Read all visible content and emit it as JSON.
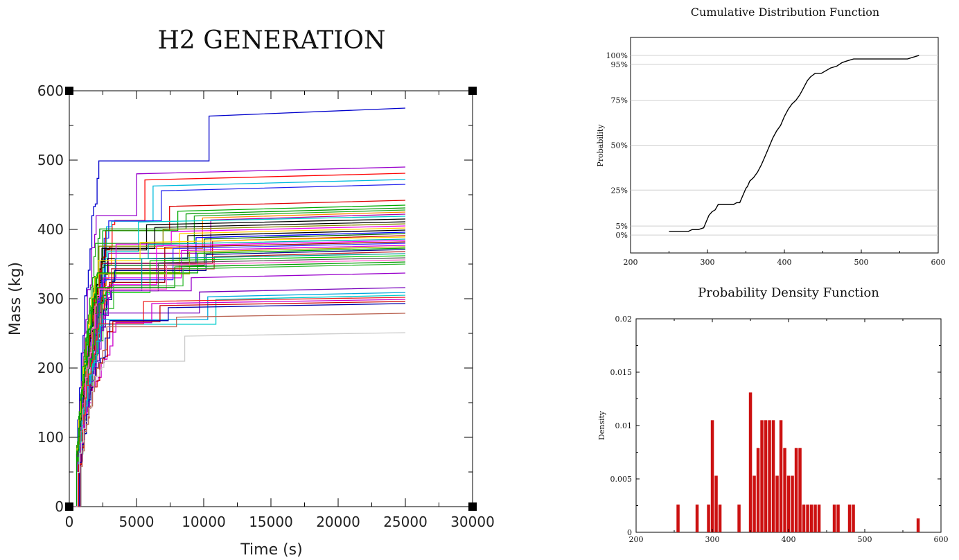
{
  "chart_data": [
    {
      "type": "line",
      "title": "H2 GENERATION",
      "xlabel": "Time (s)",
      "ylabel": "Mass (kg)",
      "xlim": [
        0,
        30000
      ],
      "ylim": [
        0,
        600
      ],
      "xticks": [
        "0",
        "5000",
        "10000",
        "15000",
        "20000",
        "25000",
        "30000"
      ],
      "yticks": [
        "0",
        "100",
        "200",
        "300",
        "400",
        "500",
        "600"
      ],
      "grid": false,
      "legend": "none",
      "series_final_values": [
        575,
        490,
        481,
        472,
        465,
        442,
        435,
        431,
        428,
        425,
        422,
        419,
        415,
        411,
        408,
        405,
        402,
        399,
        396,
        394,
        391,
        389,
        386,
        384,
        382,
        380,
        377,
        375,
        373,
        371,
        368,
        365,
        362,
        359,
        356,
        353,
        350,
        337,
        316,
        309,
        305,
        302,
        299,
        296,
        293,
        279,
        251
      ],
      "series_colors": [
        "#0000cc",
        "#9900cc",
        "#ff0000",
        "#00bbdd",
        "#2222ee",
        "#dd0000",
        "#00aa00",
        "#009900",
        "#22aa22",
        "#ff8800",
        "#aa00aa",
        "#00cccc",
        "#000000",
        "#000000",
        "#888800",
        "#ee00ee",
        "#ffcc00",
        "#000000",
        "#0000ff",
        "#006600",
        "#cc0000",
        "#ffdd00",
        "#00aaaa",
        "#ff00ff",
        "#990000",
        "#3333ff",
        "#dd00dd",
        "#aaaa00",
        "#00aa00",
        "#000088",
        "#bb2222",
        "#009999",
        "#00cc00",
        "#555555",
        "#ff66cc",
        "#009900",
        "#33bb33",
        "#9900cc",
        "#7700bb",
        "#00aadd",
        "#00cccc",
        "#ee2222",
        "#cc00cc",
        "#cc0000",
        "#0000aa",
        "#bb6655",
        "#cccccc"
      ]
    },
    {
      "type": "line",
      "title": "Cumulative Distribution Function",
      "xlabel": "",
      "ylabel": "Probability",
      "xlim": [
        200,
        600
      ],
      "ylim": [
        -0.1,
        1.1
      ],
      "xticks": [
        "200",
        "300",
        "400",
        "500",
        "600"
      ],
      "yticks": [
        {
          "label": "0%",
          "value": 0.0
        },
        {
          "label": "5%",
          "value": 0.05
        },
        {
          "label": "25%",
          "value": 0.25
        },
        {
          "label": "50%",
          "value": 0.5
        },
        {
          "label": "75%",
          "value": 0.75
        },
        {
          "label": "95%",
          "value": 0.95
        },
        {
          "label": "100%",
          "value": 1.0
        }
      ],
      "grid": true,
      "x": [
        250,
        256,
        275,
        280,
        288,
        295,
        298,
        302,
        306,
        310,
        314,
        318,
        326,
        334,
        338,
        342,
        350,
        352,
        355,
        360,
        365,
        370,
        375,
        380,
        385,
        390,
        395,
        400,
        405,
        410,
        415,
        420,
        425,
        430,
        434,
        440,
        448,
        460,
        468,
        475,
        482,
        490,
        500,
        560,
        575
      ],
      "y": [
        0.02,
        0.02,
        0.02,
        0.03,
        0.03,
        0.04,
        0.07,
        0.11,
        0.13,
        0.14,
        0.17,
        0.17,
        0.17,
        0.17,
        0.18,
        0.18,
        0.26,
        0.27,
        0.3,
        0.32,
        0.35,
        0.39,
        0.44,
        0.49,
        0.54,
        0.58,
        0.61,
        0.66,
        0.7,
        0.73,
        0.75,
        0.78,
        0.82,
        0.86,
        0.88,
        0.9,
        0.9,
        0.93,
        0.94,
        0.96,
        0.97,
        0.98,
        0.98,
        0.98,
        1.0
      ]
    },
    {
      "type": "bar",
      "title": "Probability Density Function",
      "xlabel": "",
      "ylabel": "Density",
      "xlim": [
        200,
        600
      ],
      "ylim": [
        0,
        0.02
      ],
      "xticks": [
        "200",
        "300",
        "400",
        "500",
        "600"
      ],
      "yticks": [
        "0",
        "0.005",
        "0.01",
        "0.015",
        "0.02"
      ],
      "bar_width": 5,
      "bar_color": "#cc1111",
      "x": [
        255,
        280,
        295,
        300,
        305,
        310,
        335,
        350,
        355,
        360,
        365,
        370,
        375,
        380,
        385,
        390,
        395,
        400,
        405,
        410,
        415,
        420,
        425,
        430,
        435,
        440,
        460,
        465,
        480,
        485,
        570
      ],
      "values": [
        0.0026,
        0.0026,
        0.0026,
        0.0105,
        0.0053,
        0.0026,
        0.0026,
        0.0131,
        0.0053,
        0.0079,
        0.0105,
        0.0105,
        0.0105,
        0.0105,
        0.0053,
        0.0105,
        0.0079,
        0.0053,
        0.0053,
        0.0079,
        0.0079,
        0.0026,
        0.0026,
        0.0026,
        0.0026,
        0.0026,
        0.0026,
        0.0026,
        0.0026,
        0.0026,
        0.0013
      ]
    }
  ]
}
